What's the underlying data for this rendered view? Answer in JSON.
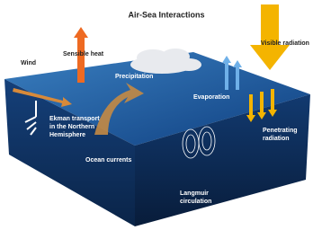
{
  "title": "Air-Sea Interactions",
  "labels": [
    {
      "lines": [
        "Sensible heat"
      ]
    },
    {
      "lines": [
        "Visible radiation"
      ]
    },
    {
      "lines": [
        "Wind"
      ]
    },
    {
      "lines": [
        "Precipitation"
      ]
    },
    {
      "lines": [
        "Evaporation"
      ]
    },
    {
      "lines": [
        "Ekman transport",
        "in the Northern",
        "Hemisphere"
      ]
    },
    {
      "lines": [
        "Ocean currents"
      ]
    },
    {
      "lines": [
        "Penetrating",
        "radiation"
      ]
    },
    {
      "lines": [
        "Langmuir",
        "circulation"
      ]
    }
  ]
}
